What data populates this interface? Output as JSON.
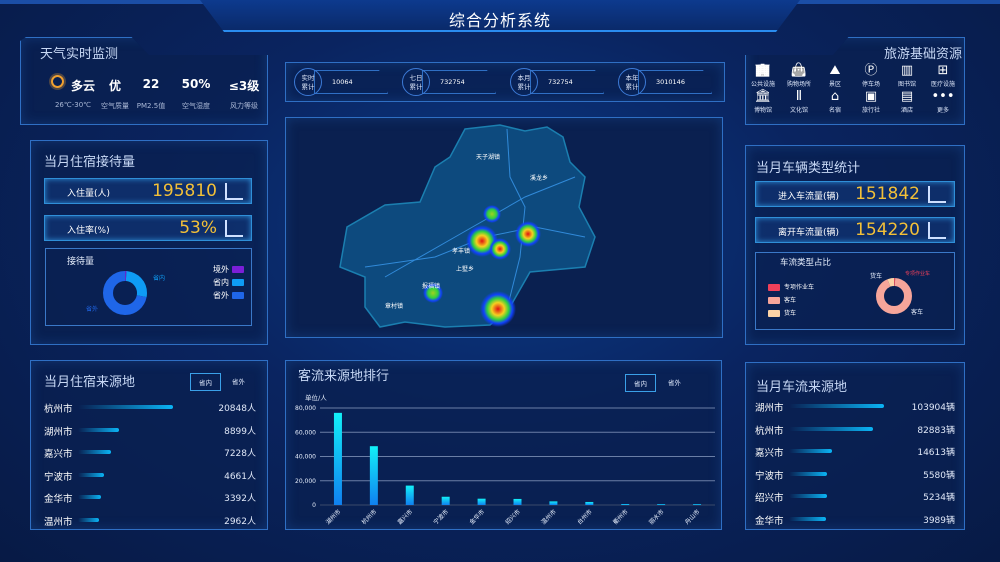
{
  "header": {
    "title": "综合分析系统"
  },
  "weather": {
    "title": "天气实时监测",
    "icon": "sun-icon",
    "items": [
      {
        "value": "多云",
        "label": "26℃-30℃"
      },
      {
        "value": "优",
        "label": "空气质量"
      },
      {
        "value": "22",
        "label": "PM2.5值"
      },
      {
        "value": "50%",
        "label": "空气湿度"
      },
      {
        "value": "≤3级",
        "label": "风力等级"
      }
    ]
  },
  "stats": [
    {
      "label1": "实时",
      "label2": "累计",
      "value": "10064"
    },
    {
      "label1": "七日",
      "label2": "累计",
      "value": "732754"
    },
    {
      "label1": "本月",
      "label2": "累计",
      "value": "732754"
    },
    {
      "label1": "本年",
      "label2": "累计",
      "value": "3010146"
    }
  ],
  "resources": {
    "title": "旅游基础资源",
    "items": [
      {
        "label": "公共设施",
        "icon": "building-tree-icon"
      },
      {
        "label": "购物场所",
        "icon": "shopping-bag-icon"
      },
      {
        "label": "景区",
        "icon": "mountain-icon"
      },
      {
        "label": "停车场",
        "icon": "parking-icon"
      },
      {
        "label": "图书馆",
        "icon": "books-icon"
      },
      {
        "label": "医疗设施",
        "icon": "medical-kit-icon"
      },
      {
        "label": "博物馆",
        "icon": "museum-icon"
      },
      {
        "label": "文化馆",
        "icon": "column-icon"
      },
      {
        "label": "名宿",
        "icon": "house-icon"
      },
      {
        "label": "旅行社",
        "icon": "luggage-icon"
      },
      {
        "label": "酒店",
        "icon": "hotel-icon"
      },
      {
        "label": "更多",
        "icon": "more-dots-icon"
      }
    ]
  },
  "lodging": {
    "title": "当月住宿接待量",
    "kpis": [
      {
        "label": "入住量(人)",
        "value": "195810"
      },
      {
        "label": "入住率(%)",
        "value": "53%"
      }
    ],
    "donut": {
      "title": "接待量",
      "slices": [
        {
          "name": "境外",
          "value": 1,
          "color": "#7b1fd8"
        },
        {
          "name": "省内",
          "value": 27,
          "color": "#0e9cf5"
        },
        {
          "name": "省外",
          "value": 72,
          "color": "#1f66e8"
        }
      ]
    }
  },
  "map": {
    "labels": [
      "天子湖镇",
      "溪龙乡",
      "孝丰镇",
      "上墅乡",
      "报福镇",
      "章村镇"
    ]
  },
  "lodging_source": {
    "title": "当月住宿来源地",
    "tabs": [
      "省内",
      "省外"
    ],
    "rows": [
      {
        "name": "杭州市",
        "value": "20848人",
        "pct": 100
      },
      {
        "name": "湖州市",
        "value": "8899人",
        "pct": 43
      },
      {
        "name": "嘉兴市",
        "value": "7228人",
        "pct": 35
      },
      {
        "name": "宁波市",
        "value": "4661人",
        "pct": 27
      },
      {
        "name": "金华市",
        "value": "3392人",
        "pct": 24
      },
      {
        "name": "温州市",
        "value": "2962人",
        "pct": 22
      }
    ]
  },
  "chart_data": {
    "type": "bar",
    "title": "客流来源地排行",
    "tabs": [
      "省内",
      "省外"
    ],
    "ylabel": "单位/人",
    "ylim": [
      0,
      80000
    ],
    "yticks": [
      "0",
      "20,000",
      "40,000",
      "60,000",
      "80,000"
    ],
    "grid": true,
    "categories": [
      "湖州市",
      "杭州市",
      "嘉兴市",
      "宁波市",
      "金华市",
      "绍兴市",
      "温州市",
      "台州市",
      "衢州市",
      "丽水市",
      "舟山市"
    ],
    "values": [
      76000,
      48500,
      16000,
      6800,
      5200,
      5000,
      3000,
      2500,
      800,
      700,
      700
    ]
  },
  "vehicles": {
    "title": "当月车辆类型统计",
    "kpis": [
      {
        "label": "进入车流量(辆)",
        "value": "151842"
      },
      {
        "label": "离开车流量(辆)",
        "value": "154220"
      }
    ],
    "donut": {
      "title": "车流类型占比",
      "slices": [
        {
          "name": "专项作业车",
          "value": 1,
          "color": "#f0405a"
        },
        {
          "name": "客车",
          "value": 93,
          "color": "#f6a59a"
        },
        {
          "name": "货车",
          "value": 6,
          "color": "#fcd3a6"
        }
      ]
    }
  },
  "vehicle_source": {
    "title": "当月车流来源地",
    "rows": [
      {
        "name": "湖州市",
        "value": "103904辆",
        "pct": 100
      },
      {
        "name": "杭州市",
        "value": "82883辆",
        "pct": 88
      },
      {
        "name": "嘉兴市",
        "value": "14613辆",
        "pct": 45
      },
      {
        "name": "宁波市",
        "value": "5580辆",
        "pct": 40
      },
      {
        "name": "绍兴市",
        "value": "5234辆",
        "pct": 40
      },
      {
        "name": "金华市",
        "value": "3989辆",
        "pct": 39
      }
    ]
  }
}
